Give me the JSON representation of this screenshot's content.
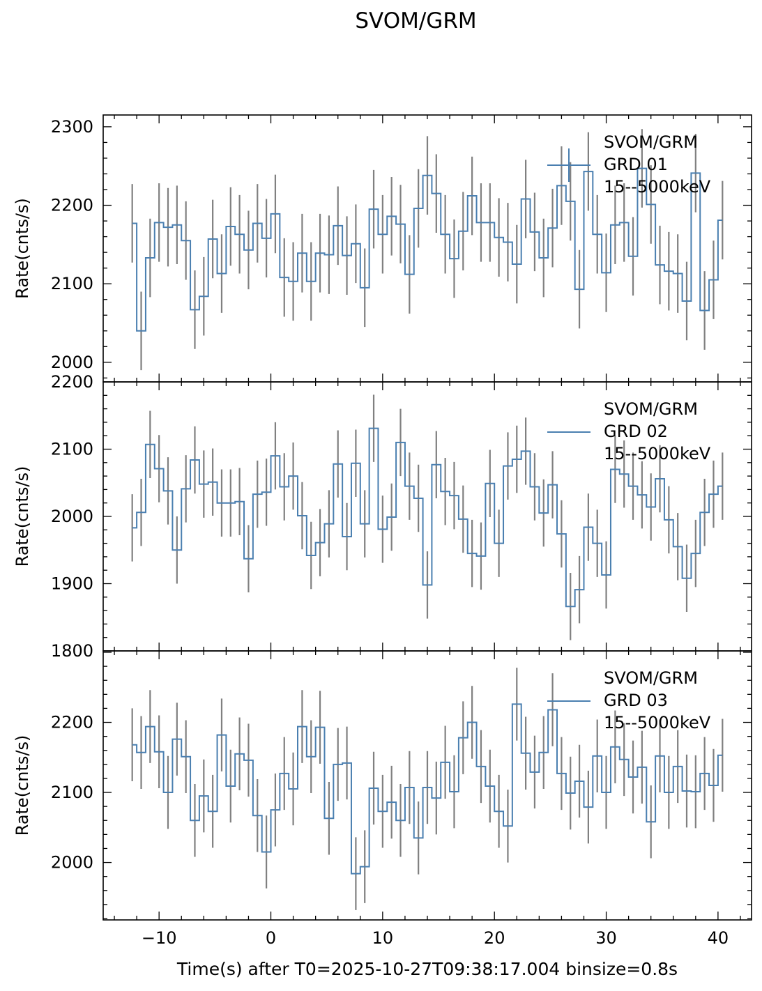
{
  "title": "SVOM/GRM",
  "xlabel": "Time(s) after T0=2025-10-27T09:38:17.004 binsize=0.8s",
  "colors": {
    "line": "#4a7fb0",
    "error": "#808080",
    "axis": "#000000"
  },
  "chart_data": [
    {
      "type": "line",
      "ylabel": "Rate(cnts/s)",
      "legend": [
        "SVOM/GRM",
        " GRD 01",
        "15--5000keV"
      ],
      "legend_placement": "top-right",
      "xlim": [
        -15,
        43
      ],
      "ylim": [
        1975,
        2315
      ],
      "yticks": [
        2000,
        2100,
        2200,
        2300
      ],
      "xticks": [
        -10,
        0,
        10,
        20,
        30,
        40
      ],
      "x_start": -12.4,
      "binsize": 0.8,
      "err": 50,
      "values": [
        2177,
        2040,
        2133,
        2178,
        2172,
        2175,
        2155,
        2067,
        2084,
        2157,
        2113,
        2173,
        2163,
        2143,
        2177,
        2158,
        2189,
        2108,
        2103,
        2139,
        2103,
        2139,
        2137,
        2174,
        2136,
        2151,
        2095,
        2195,
        2163,
        2186,
        2176,
        2112,
        2196,
        2238,
        2215,
        2163,
        2132,
        2167,
        2212,
        2178,
        2178,
        2159,
        2153,
        2125,
        2208,
        2166,
        2133,
        2171,
        2225,
        2205,
        2093,
        2243,
        2163,
        2114,
        2175,
        2178,
        2135,
        2247,
        2201,
        2124,
        2116,
        2113,
        2078,
        2241,
        2066,
        2105,
        2181
      ]
    },
    {
      "type": "line",
      "ylabel": "Rate(cnts/s)",
      "legend": [
        "SVOM/GRM",
        " GRD 02",
        "15--5000keV"
      ],
      "legend_placement": "top-right",
      "xlim": [
        -15,
        43
      ],
      "ylim": [
        1800,
        2200
      ],
      "yticks": [
        1800,
        1900,
        2000,
        2100,
        2200
      ],
      "xticks": [
        -10,
        0,
        10,
        20,
        30,
        40
      ],
      "x_start": -12.4,
      "binsize": 0.8,
      "err": 50,
      "values": [
        1983,
        2006,
        2107,
        2071,
        2038,
        1950,
        2041,
        2084,
        2048,
        2051,
        2020,
        2020,
        2022,
        1937,
        2033,
        2036,
        2090,
        2044,
        2060,
        2001,
        1942,
        1961,
        1989,
        2078,
        1970,
        2079,
        1989,
        2131,
        1981,
        1999,
        2110,
        2045,
        2027,
        1898,
        2077,
        2037,
        2031,
        1996,
        1945,
        1941,
        2049,
        1960,
        2075,
        2085,
        2097,
        2044,
        2005,
        2047,
        1974,
        1866,
        1891,
        1984,
        1960,
        1913,
        2070,
        2063,
        2045,
        2032,
        2014,
        2056,
        1995,
        1955,
        1908,
        1945,
        2006,
        2033,
        2045
      ]
    },
    {
      "type": "line",
      "ylabel": "Rate(cnts/s)",
      "legend": [
        "SVOM/GRM",
        " GRD 03",
        "15--5000keV"
      ],
      "legend_placement": "top-right",
      "xlim": [
        -15,
        43
      ],
      "ylim": [
        1918,
        2302
      ],
      "yticks": [
        2000,
        2100,
        2200
      ],
      "xticks": [
        -10,
        0,
        10,
        20,
        30,
        40
      ],
      "x_start": -12.4,
      "binsize": 0.8,
      "err": 52,
      "values": [
        2168,
        2157,
        2194,
        2158,
        2100,
        2176,
        2151,
        2060,
        2095,
        2073,
        2182,
        2109,
        2155,
        2146,
        2067,
        2015,
        2075,
        2127,
        2105,
        2194,
        2151,
        2193,
        2063,
        2140,
        2142,
        1984,
        1994,
        2106,
        2073,
        2086,
        2060,
        2107,
        2035,
        2107,
        2092,
        2143,
        2101,
        2178,
        2200,
        2137,
        2109,
        2073,
        2052,
        2226,
        2156,
        2129,
        2157,
        2218,
        2127,
        2099,
        2116,
        2079,
        2152,
        2100,
        2165,
        2147,
        2122,
        2136,
        2058,
        2152,
        2100,
        2137,
        2102,
        2101,
        2127,
        2110,
        2153
      ]
    }
  ]
}
